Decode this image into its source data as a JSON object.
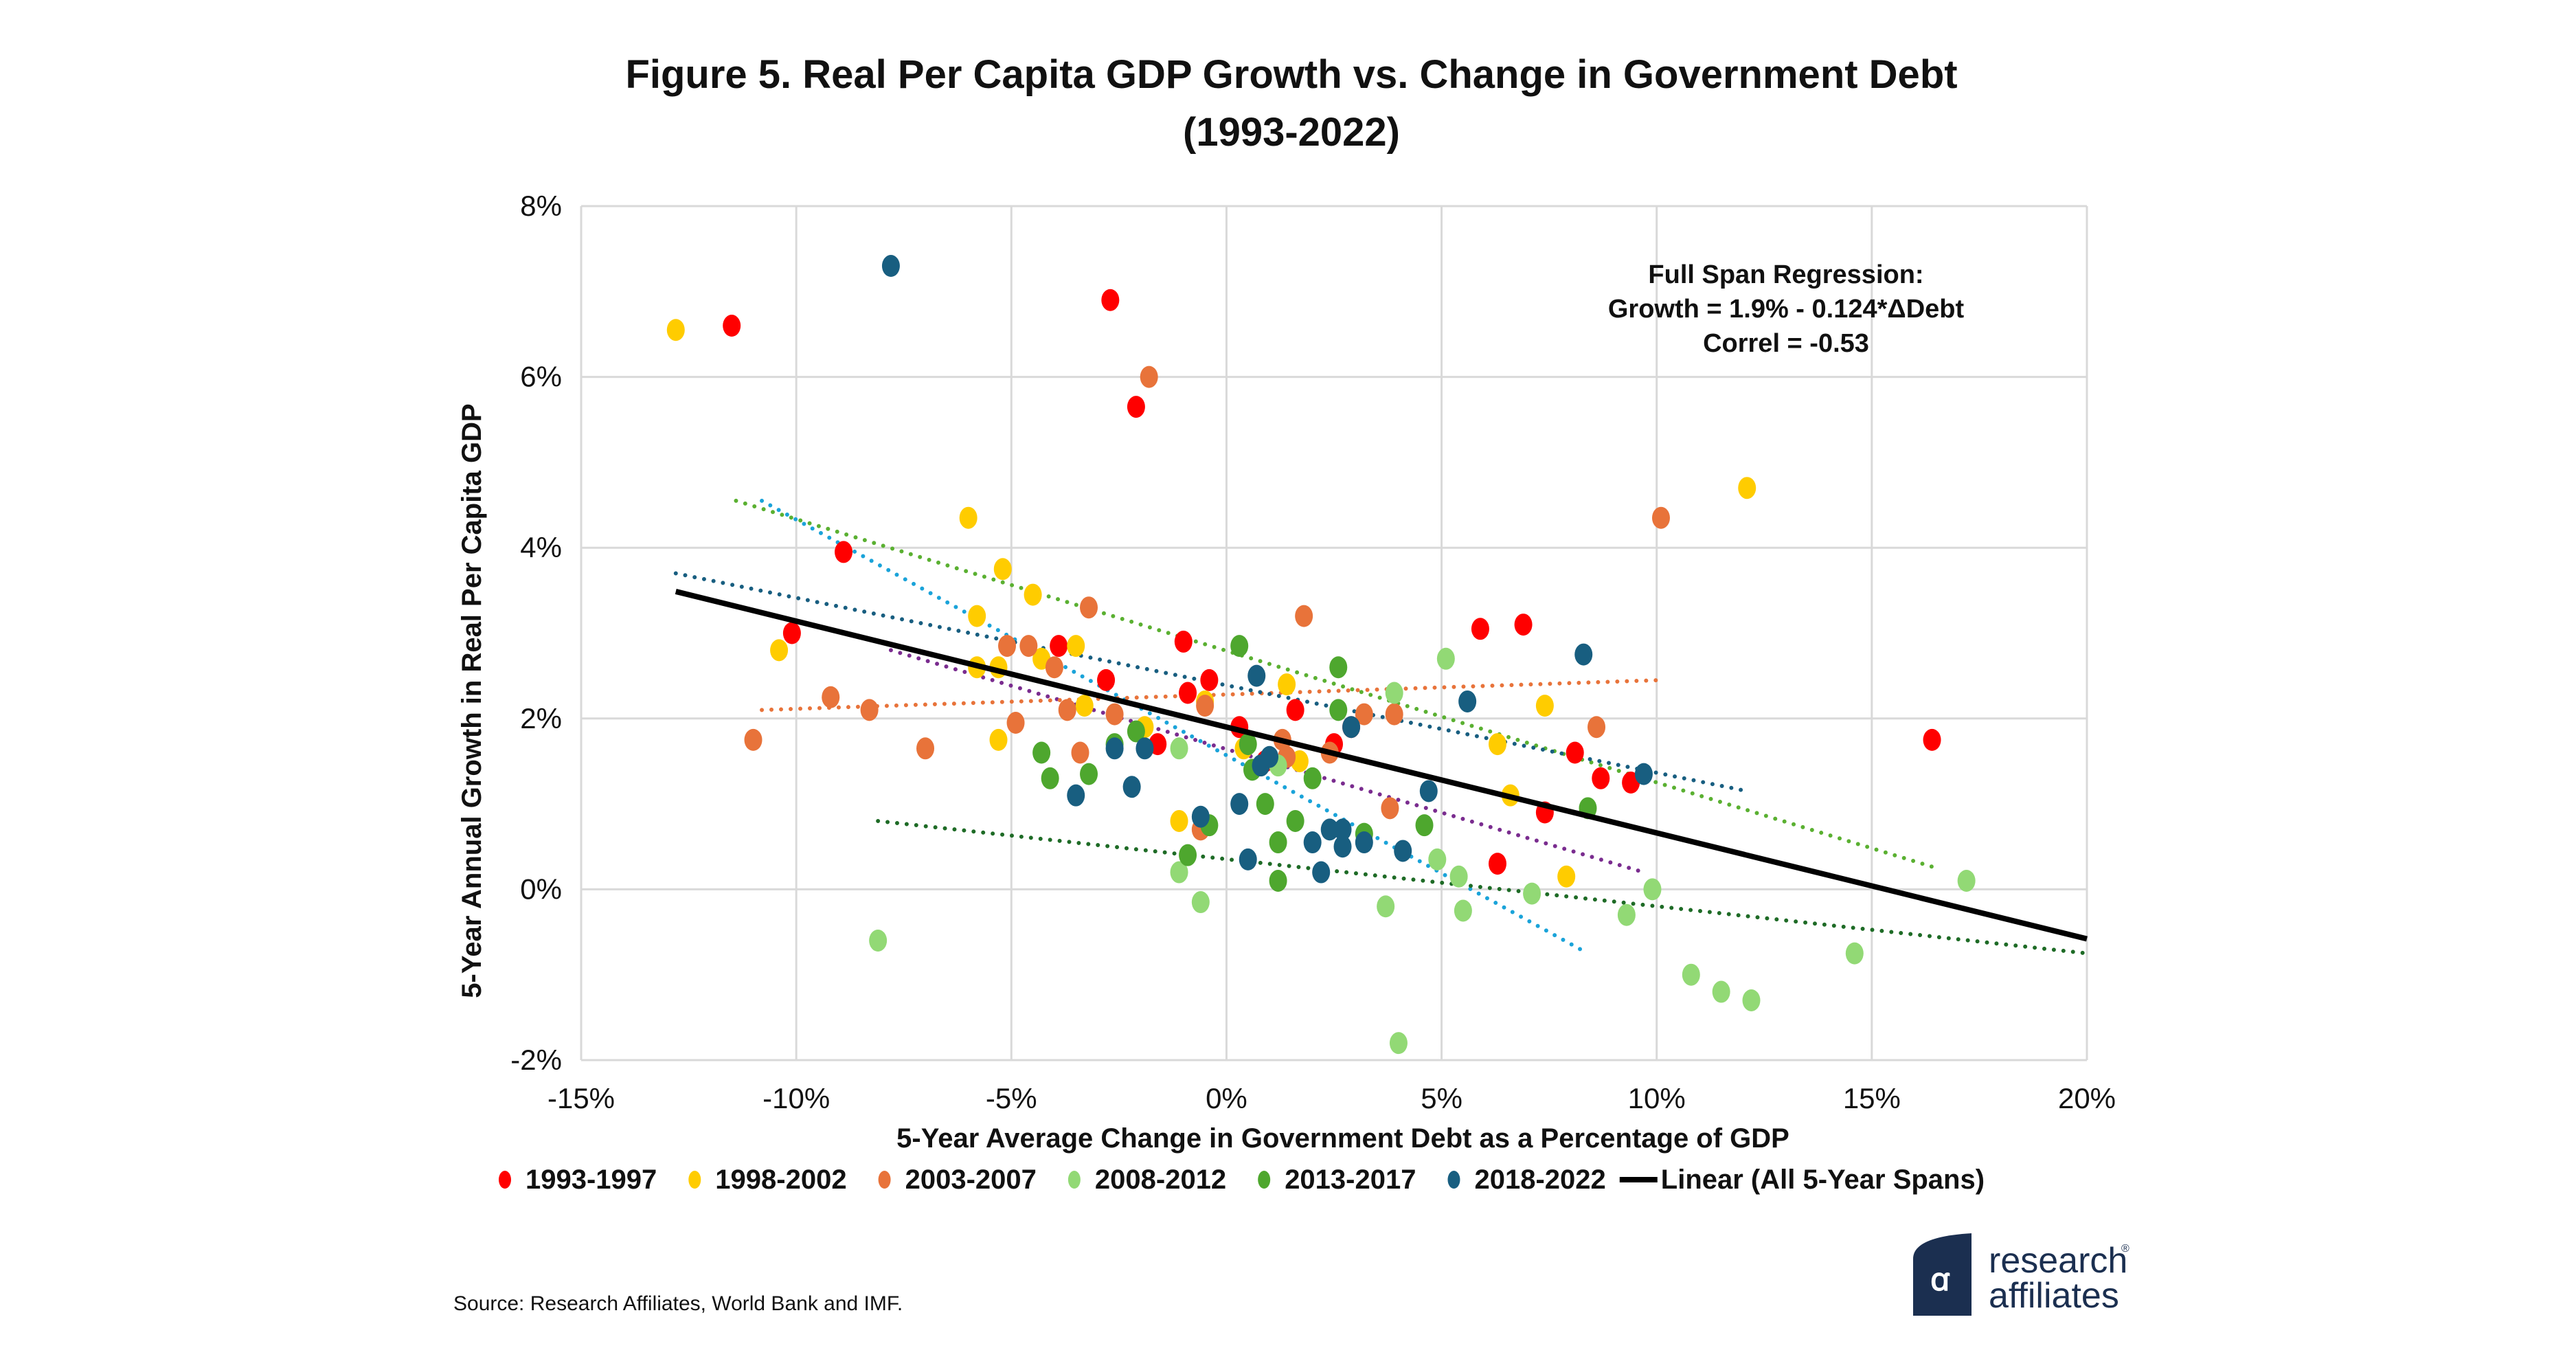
{
  "chart_data": {
    "type": "scatter",
    "title": "Figure 5. Real Per Capita GDP Growth vs. Change in Government Debt",
    "subtitle": "(1993-2022)",
    "xlabel": "5-Year Average Change in Government Debt as a Percentage of GDP",
    "ylabel": "5-Year Annual Growth in Real Per Capita GDP",
    "xlim": [
      -15,
      20
    ],
    "ylim": [
      -2,
      8
    ],
    "x_ticks": [
      -15,
      -10,
      -5,
      0,
      5,
      10,
      15,
      20
    ],
    "x_tick_labels": [
      "-15%",
      "-10%",
      "-5%",
      "0%",
      "5%",
      "10%",
      "15%",
      "20%"
    ],
    "y_ticks": [
      -2,
      0,
      2,
      4,
      6,
      8
    ],
    "y_tick_labels": [
      "-2%",
      "0%",
      "2%",
      "4%",
      "6%",
      "8%"
    ],
    "grid": true,
    "legend_position": "bottom",
    "annotation": [
      "Full Span Regression:",
      "Growth = 1.9% - 0.124*ΔDebt",
      "Correl = -0.53"
    ],
    "series": [
      {
        "name": "1993-1997",
        "color": "#ff0000",
        "trend_color": "#7a2c8f",
        "points": [
          [
            -11.5,
            6.6
          ],
          [
            -2.7,
            6.9
          ],
          [
            -2.1,
            5.65
          ],
          [
            -8.9,
            3.95
          ],
          [
            -10.1,
            3.0
          ],
          [
            -3.9,
            2.85
          ],
          [
            -1.0,
            2.9
          ],
          [
            -2.8,
            2.45
          ],
          [
            -0.4,
            2.45
          ],
          [
            -0.9,
            2.3
          ],
          [
            0.3,
            1.9
          ],
          [
            1.6,
            2.1
          ],
          [
            2.5,
            1.7
          ],
          [
            2.9,
            1.9
          ],
          [
            -1.6,
            1.7
          ],
          [
            0.9,
            1.5
          ],
          [
            5.9,
            3.05
          ],
          [
            6.9,
            3.1
          ],
          [
            8.1,
            1.6
          ],
          [
            8.7,
            1.3
          ],
          [
            9.4,
            1.25
          ],
          [
            7.4,
            0.9
          ],
          [
            6.3,
            0.3
          ],
          [
            16.4,
            1.75
          ]
        ],
        "trend": [
          [
            -7.8,
            2.8
          ],
          [
            9.7,
            0.2
          ]
        ]
      },
      {
        "name": "1998-2002",
        "color": "#ffcc00",
        "trend_color": "#1aa3d9",
        "points": [
          [
            -12.8,
            6.55
          ],
          [
            -6.0,
            4.35
          ],
          [
            -5.2,
            3.75
          ],
          [
            -4.5,
            3.45
          ],
          [
            -5.8,
            3.2
          ],
          [
            -3.5,
            2.85
          ],
          [
            -5.3,
            2.6
          ],
          [
            -5.8,
            2.6
          ],
          [
            -4.3,
            2.7
          ],
          [
            -10.4,
            2.8
          ],
          [
            -3.3,
            2.15
          ],
          [
            -1.9,
            1.9
          ],
          [
            -5.3,
            1.75
          ],
          [
            -0.5,
            2.2
          ],
          [
            1.4,
            2.4
          ],
          [
            0.4,
            1.65
          ],
          [
            1.7,
            1.5
          ],
          [
            -1.1,
            0.8
          ],
          [
            12.1,
            4.7
          ],
          [
            7.4,
            2.15
          ],
          [
            6.3,
            1.7
          ],
          [
            6.6,
            1.1
          ],
          [
            7.9,
            0.15
          ]
        ],
        "trend": [
          [
            -10.8,
            4.55
          ],
          [
            8.4,
            -0.75
          ]
        ]
      },
      {
        "name": "2003-2007",
        "color": "#e8733a",
        "trend_color": "#e8733a",
        "points": [
          [
            -1.8,
            6.0
          ],
          [
            10.1,
            4.35
          ],
          [
            -3.2,
            3.3
          ],
          [
            1.8,
            3.2
          ],
          [
            -5.1,
            2.85
          ],
          [
            -4.6,
            2.85
          ],
          [
            -4.0,
            2.6
          ],
          [
            -9.2,
            2.25
          ],
          [
            -8.3,
            2.1
          ],
          [
            -3.7,
            2.1
          ],
          [
            -2.6,
            2.05
          ],
          [
            -4.9,
            1.95
          ],
          [
            -11.0,
            1.75
          ],
          [
            -7.0,
            1.65
          ],
          [
            -3.4,
            1.6
          ],
          [
            -0.5,
            2.15
          ],
          [
            1.4,
            1.55
          ],
          [
            1.3,
            1.75
          ],
          [
            2.4,
            1.6
          ],
          [
            3.2,
            2.05
          ],
          [
            3.9,
            2.05
          ],
          [
            8.6,
            1.9
          ],
          [
            3.8,
            0.95
          ],
          [
            -0.6,
            0.7
          ]
        ],
        "trend": [
          [
            -10.8,
            2.1
          ],
          [
            10.1,
            2.45
          ]
        ]
      },
      {
        "name": "2008-2012",
        "color": "#92d975",
        "trend_color": "#1e6b26",
        "points": [
          [
            5.1,
            2.7
          ],
          [
            3.9,
            2.3
          ],
          [
            -1.1,
            1.65
          ],
          [
            -1.1,
            0.2
          ],
          [
            -0.6,
            -0.15
          ],
          [
            3.7,
            -0.2
          ],
          [
            5.5,
            -0.25
          ],
          [
            4.9,
            0.35
          ],
          [
            5.4,
            0.15
          ],
          [
            7.1,
            -0.05
          ],
          [
            9.9,
            0.0
          ],
          [
            9.3,
            -0.3
          ],
          [
            10.8,
            -1.0
          ],
          [
            11.5,
            -1.2
          ],
          [
            12.2,
            -1.3
          ],
          [
            14.6,
            -0.75
          ],
          [
            17.2,
            0.1
          ],
          [
            -8.1,
            -0.6
          ],
          [
            4.0,
            -1.8
          ],
          [
            1.2,
            1.45
          ]
        ],
        "trend": [
          [
            -8.1,
            0.8
          ],
          [
            20,
            -0.75
          ]
        ]
      },
      {
        "name": "2013-2017",
        "color": "#4ea72e",
        "trend_color": "#5ab031",
        "points": [
          [
            0.3,
            2.85
          ],
          [
            2.6,
            2.6
          ],
          [
            2.6,
            2.1
          ],
          [
            -4.3,
            1.6
          ],
          [
            -4.1,
            1.3
          ],
          [
            -3.2,
            1.35
          ],
          [
            -2.6,
            1.7
          ],
          [
            -2.1,
            1.85
          ],
          [
            0.5,
            1.7
          ],
          [
            0.6,
            1.4
          ],
          [
            0.9,
            1.0
          ],
          [
            1.2,
            0.55
          ],
          [
            1.6,
            0.8
          ],
          [
            2.0,
            1.3
          ],
          [
            3.2,
            0.65
          ],
          [
            4.6,
            0.75
          ],
          [
            -0.9,
            0.4
          ],
          [
            -0.4,
            0.75
          ],
          [
            1.2,
            0.1
          ],
          [
            8.4,
            0.95
          ]
        ],
        "trend": [
          [
            -11.4,
            4.55
          ],
          [
            16.5,
            0.25
          ]
        ]
      },
      {
        "name": "2018-2022",
        "color": "#185e80",
        "trend_color": "#185e80",
        "points": [
          [
            -7.8,
            7.3
          ],
          [
            0.7,
            2.5
          ],
          [
            8.3,
            2.75
          ],
          [
            5.6,
            2.2
          ],
          [
            2.9,
            1.9
          ],
          [
            -2.6,
            1.65
          ],
          [
            -1.9,
            1.65
          ],
          [
            -3.5,
            1.1
          ],
          [
            -2.2,
            1.2
          ],
          [
            0.8,
            1.45
          ],
          [
            1.0,
            1.55
          ],
          [
            0.3,
            1.0
          ],
          [
            -0.6,
            0.85
          ],
          [
            2.0,
            0.55
          ],
          [
            2.4,
            0.7
          ],
          [
            2.7,
            0.5
          ],
          [
            2.7,
            0.7
          ],
          [
            3.2,
            0.55
          ],
          [
            4.1,
            0.45
          ],
          [
            0.5,
            0.35
          ],
          [
            2.2,
            0.2
          ],
          [
            4.7,
            1.15
          ],
          [
            9.7,
            1.35
          ]
        ],
        "trend": [
          [
            -12.8,
            3.7
          ],
          [
            12.1,
            1.15
          ]
        ]
      }
    ],
    "linear_fit": {
      "name": "Linear (All 5-Year Spans)",
      "color": "#000000",
      "intercept": 1.9,
      "slope": -0.124,
      "x_range": [
        -12.8,
        20
      ]
    }
  },
  "footer": {
    "source": "Source: Research Affiliates, World Bank and IMF.",
    "logo_line1": "research",
    "logo_line2": "affiliates",
    "logo_mark": "®"
  }
}
